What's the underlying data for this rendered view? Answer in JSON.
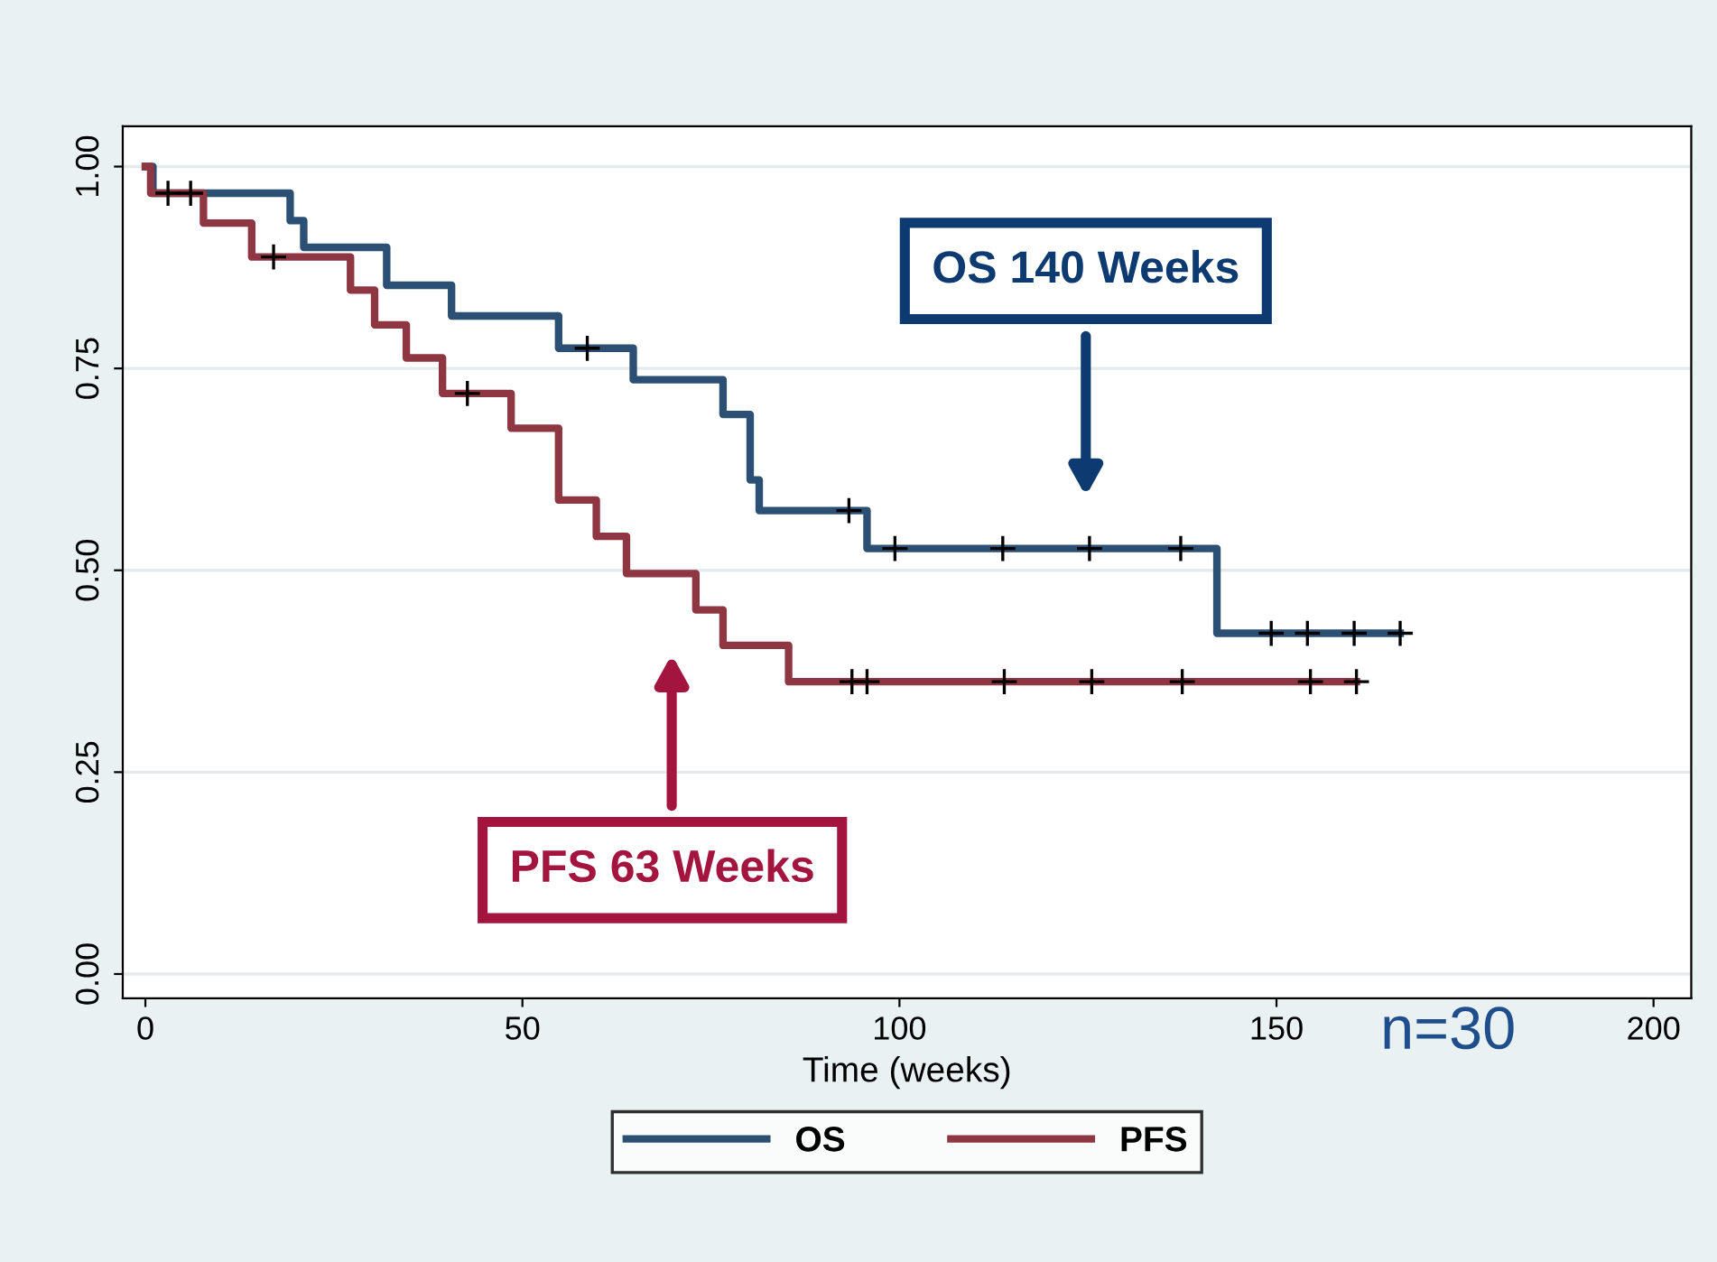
{
  "chart_data": {
    "type": "step",
    "xlabel": "Time (weeks)",
    "xlim": [
      -3,
      205
    ],
    "xticks": [
      0,
      50,
      100,
      150,
      200
    ],
    "ylim": [
      -0.03,
      1.05
    ],
    "yticks": [
      {
        "value": 0,
        "label": "0.00"
      },
      {
        "value": 0.25,
        "label": "0.25"
      },
      {
        "value": 0.5,
        "label": "0.50"
      },
      {
        "value": 0.75,
        "label": "0.75"
      },
      {
        "value": 1,
        "label": "1.00"
      }
    ],
    "grid": "y",
    "legend": "bottom",
    "series": [
      {
        "name": "OS",
        "color": "#2b5073",
        "x": [
          0,
          1,
          19.2,
          21,
          32,
          40.6,
          54.8,
          64.7,
          76.6,
          80.2,
          81.4,
          95.7,
          142.1,
          166.4
        ],
        "values": [
          1,
          0.967,
          0.933,
          0.9,
          0.853,
          0.815,
          0.775,
          0.736,
          0.693,
          0.612,
          0.574,
          0.527,
          0.422,
          0.422
        ]
      },
      {
        "name": "PFS",
        "color": "#8e3642",
        "x": [
          0,
          0.7,
          7.7,
          14.1,
          27.2,
          30.4,
          34.6,
          39.4,
          48.5,
          54.8,
          59.8,
          63.8,
          73,
          76.6,
          85.3,
          160.6
        ],
        "values": [
          1,
          0.967,
          0.93,
          0.888,
          0.847,
          0.804,
          0.763,
          0.719,
          0.676,
          0.587,
          0.542,
          0.496,
          0.451,
          0.407,
          0.362,
          0.362
        ]
      },
      {
        "type": "scatter",
        "marker": "cross",
        "color": "#000000",
        "x": [
          3,
          6,
          58.6,
          93.3,
          99.4,
          113.7,
          125.2,
          137.3,
          149.3,
          154.1,
          160.3,
          166.4
        ],
        "values": [
          0.967,
          0.967,
          0.775,
          0.574,
          0.527,
          0.527,
          0.527,
          0.527,
          0.422,
          0.422,
          0.422,
          0.422
        ]
      },
      {
        "type": "scatter",
        "marker": "cross",
        "color": "#000000",
        "x": [
          17,
          42.7,
          93.7,
          95.7,
          113.9,
          125.5,
          137.5,
          154.5,
          160.6
        ],
        "values": [
          0.888,
          0.719,
          0.362,
          0.362,
          0.362,
          0.362,
          0.362,
          0.362,
          0.362
        ]
      }
    ],
    "annotations": [
      "OS 140 Weeks",
      "PFS 63 Weeks",
      "n=30"
    ]
  }
}
